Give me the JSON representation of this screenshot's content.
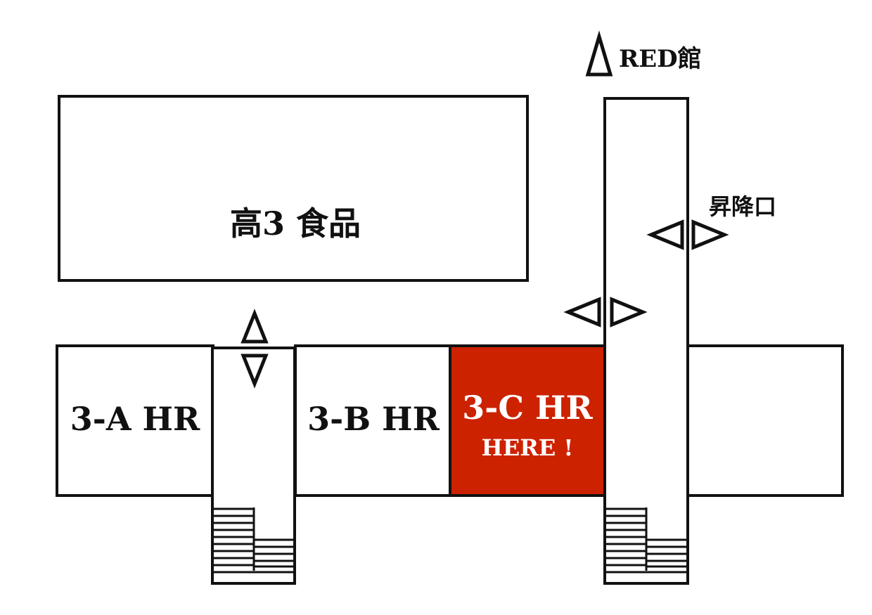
{
  "colors": {
    "line": "#111111",
    "background": "#ffffff",
    "highlight": "#cc2200",
    "highlight_text": "#ffffff"
  },
  "labels": {
    "red_building": "RED館",
    "food_room": "高3 食品",
    "elevator": "昇降口",
    "room_3a": "3-A HR",
    "room_3b": "3-B HR",
    "room_3c": "3-C HR",
    "here": "HERE !"
  },
  "icons": {
    "direction_arrow": "triangle-outline",
    "stairs": "stairs-hatch"
  }
}
